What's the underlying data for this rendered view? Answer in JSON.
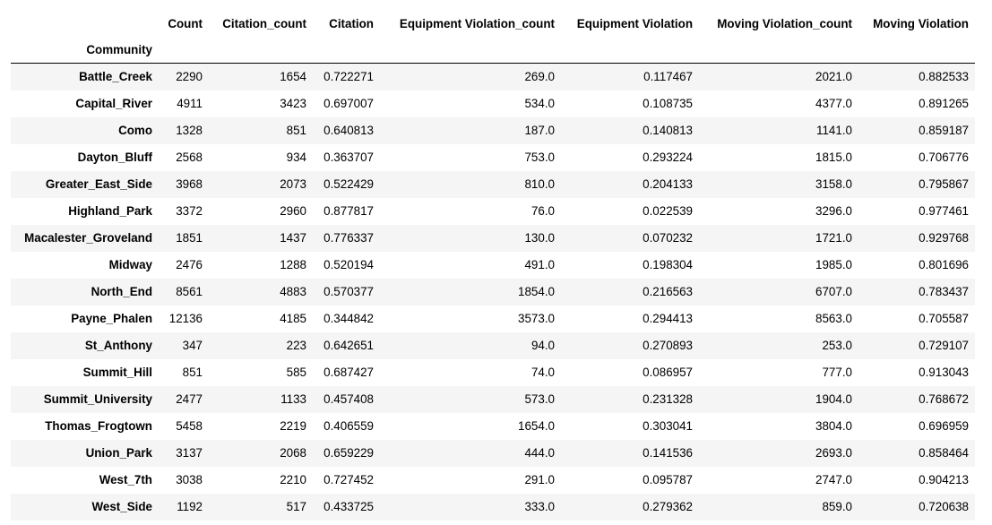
{
  "table": {
    "columns": [
      "Count",
      "Citation_count",
      "Citation",
      "Equipment Violation_count",
      "Equipment Violation",
      "Moving Violation_count",
      "Moving Violation"
    ],
    "index_name": "Community",
    "rows": [
      {
        "community": "Battle_Creek",
        "values": [
          "2290",
          "1654",
          "0.722271",
          "269.0",
          "0.117467",
          "2021.0",
          "0.882533"
        ]
      },
      {
        "community": "Capital_River",
        "values": [
          "4911",
          "3423",
          "0.697007",
          "534.0",
          "0.108735",
          "4377.0",
          "0.891265"
        ]
      },
      {
        "community": "Como",
        "values": [
          "1328",
          "851",
          "0.640813",
          "187.0",
          "0.140813",
          "1141.0",
          "0.859187"
        ]
      },
      {
        "community": "Dayton_Bluff",
        "values": [
          "2568",
          "934",
          "0.363707",
          "753.0",
          "0.293224",
          "1815.0",
          "0.706776"
        ]
      },
      {
        "community": "Greater_East_Side",
        "values": [
          "3968",
          "2073",
          "0.522429",
          "810.0",
          "0.204133",
          "3158.0",
          "0.795867"
        ]
      },
      {
        "community": "Highland_Park",
        "values": [
          "3372",
          "2960",
          "0.877817",
          "76.0",
          "0.022539",
          "3296.0",
          "0.977461"
        ]
      },
      {
        "community": "Macalester_Groveland",
        "values": [
          "1851",
          "1437",
          "0.776337",
          "130.0",
          "0.070232",
          "1721.0",
          "0.929768"
        ]
      },
      {
        "community": "Midway",
        "values": [
          "2476",
          "1288",
          "0.520194",
          "491.0",
          "0.198304",
          "1985.0",
          "0.801696"
        ]
      },
      {
        "community": "North_End",
        "values": [
          "8561",
          "4883",
          "0.570377",
          "1854.0",
          "0.216563",
          "6707.0",
          "0.783437"
        ]
      },
      {
        "community": "Payne_Phalen",
        "values": [
          "12136",
          "4185",
          "0.344842",
          "3573.0",
          "0.294413",
          "8563.0",
          "0.705587"
        ]
      },
      {
        "community": "St_Anthony",
        "values": [
          "347",
          "223",
          "0.642651",
          "94.0",
          "0.270893",
          "253.0",
          "0.729107"
        ]
      },
      {
        "community": "Summit_Hill",
        "values": [
          "851",
          "585",
          "0.687427",
          "74.0",
          "0.086957",
          "777.0",
          "0.913043"
        ]
      },
      {
        "community": "Summit_University",
        "values": [
          "2477",
          "1133",
          "0.457408",
          "573.0",
          "0.231328",
          "1904.0",
          "0.768672"
        ]
      },
      {
        "community": "Thomas_Frogtown",
        "values": [
          "5458",
          "2219",
          "0.406559",
          "1654.0",
          "0.303041",
          "3804.0",
          "0.696959"
        ]
      },
      {
        "community": "Union_Park",
        "values": [
          "3137",
          "2068",
          "0.659229",
          "444.0",
          "0.141536",
          "2693.0",
          "0.858464"
        ]
      },
      {
        "community": "West_7th",
        "values": [
          "3038",
          "2210",
          "0.727452",
          "291.0",
          "0.095787",
          "2747.0",
          "0.904213"
        ]
      },
      {
        "community": "West_Side",
        "values": [
          "1192",
          "517",
          "0.433725",
          "333.0",
          "0.279362",
          "859.0",
          "0.720638"
        ]
      }
    ]
  },
  "colors": {
    "row_stripe": "#f5f5f5",
    "background": "#ffffff",
    "text": "#000000",
    "header_rule": "#000000"
  }
}
